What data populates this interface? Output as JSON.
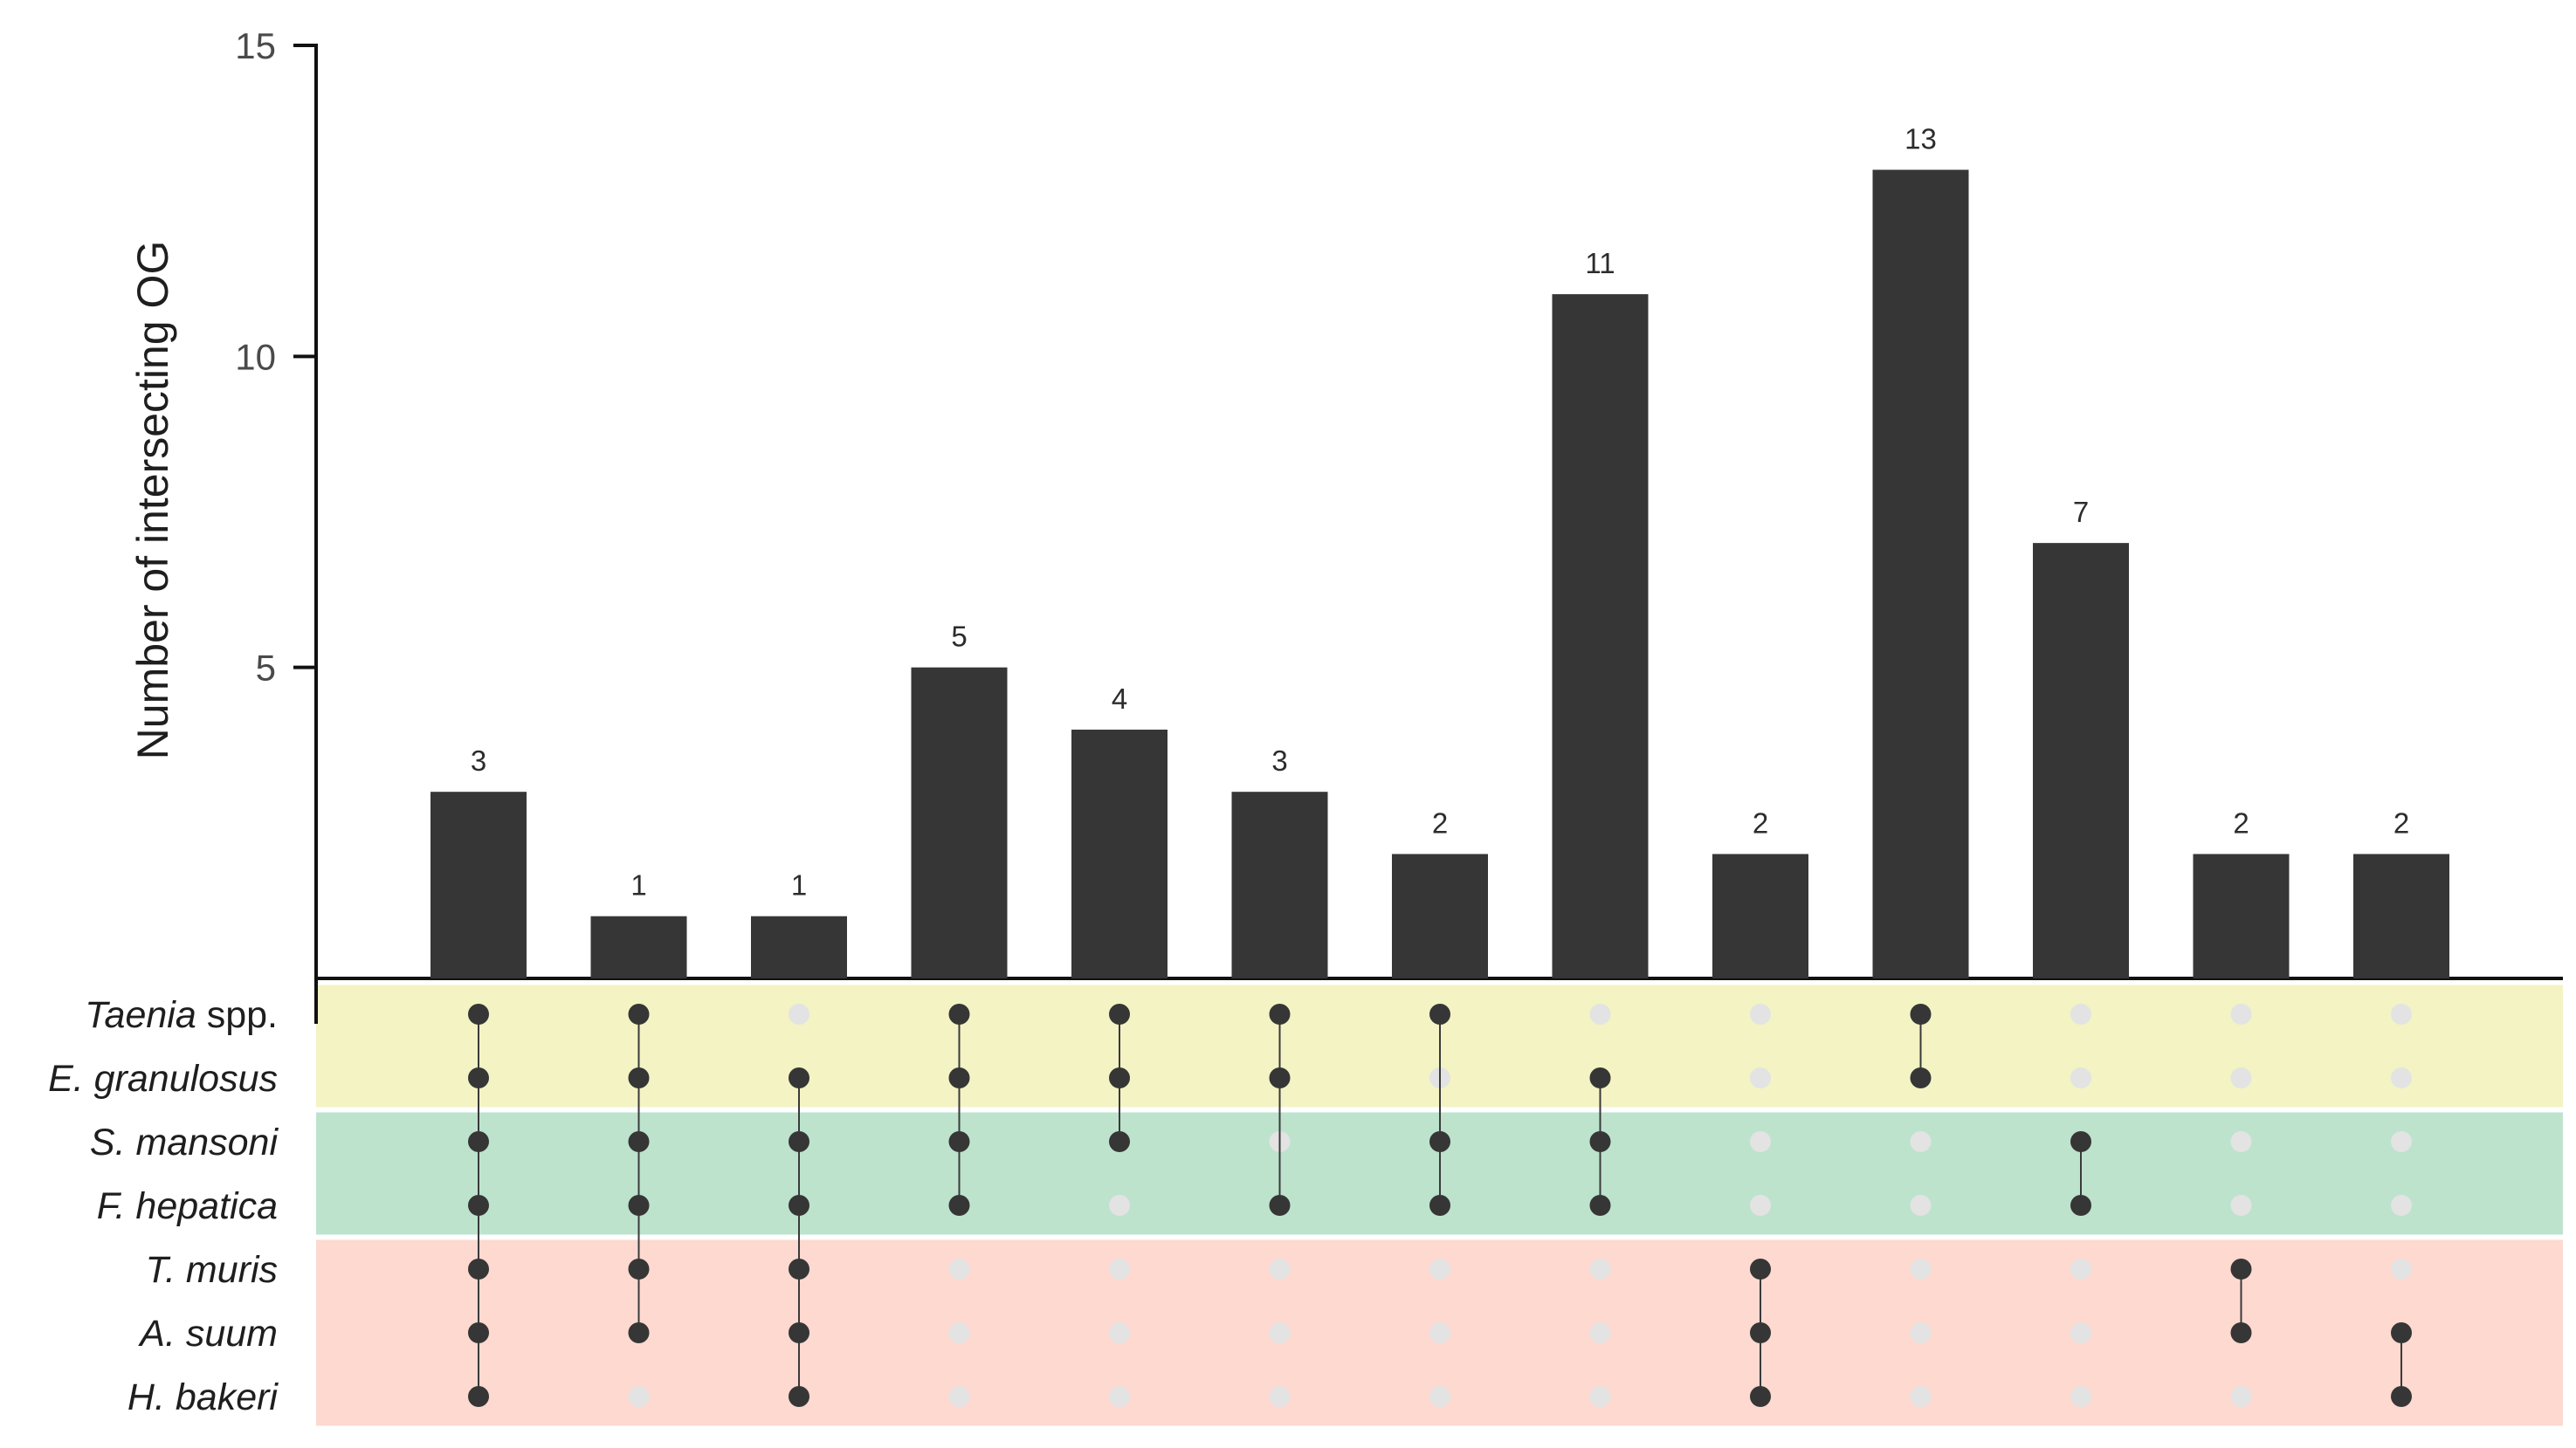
{
  "chart_data": {
    "type": "bar",
    "subtype": "upset",
    "ylabel": "Number of intersecting OG",
    "ylim": [
      0,
      15
    ],
    "yticks": [
      5,
      10,
      15
    ],
    "colors": {
      "bar": "#363636",
      "dot_on": "#363636",
      "dot_off": "#e3e3e3",
      "group_cestodes": "#f3f3c4",
      "group_trematodes": "#bde3cd",
      "group_nematodes": "#fdd9d0"
    },
    "sets": [
      {
        "italic": "Taenia",
        "plain": " spp.",
        "group": "cestodes"
      },
      {
        "italic": "E. granulosus",
        "plain": "",
        "group": "cestodes"
      },
      {
        "italic": "S. mansoni",
        "plain": "",
        "group": "trematodes"
      },
      {
        "italic": "F. hepatica",
        "plain": "",
        "group": "trematodes"
      },
      {
        "italic": "T. muris",
        "plain": "",
        "group": "nematodes"
      },
      {
        "italic": "A. suum",
        "plain": "",
        "group": "nematodes"
      },
      {
        "italic": "H. bakeri",
        "plain": "",
        "group": "nematodes"
      }
    ],
    "values": [
      3,
      1,
      1,
      5,
      4,
      3,
      2,
      11,
      2,
      13,
      7,
      2,
      2
    ],
    "matrix": [
      [
        1,
        1,
        1,
        1,
        1,
        1,
        1
      ],
      [
        1,
        1,
        1,
        1,
        1,
        1,
        0
      ],
      [
        0,
        1,
        1,
        1,
        1,
        1,
        1
      ],
      [
        1,
        1,
        1,
        1,
        0,
        0,
        0
      ],
      [
        1,
        1,
        1,
        0,
        0,
        0,
        0
      ],
      [
        1,
        1,
        0,
        1,
        0,
        0,
        0
      ],
      [
        1,
        0,
        1,
        1,
        0,
        0,
        0
      ],
      [
        0,
        1,
        1,
        1,
        0,
        0,
        0
      ],
      [
        0,
        0,
        0,
        0,
        1,
        1,
        1
      ],
      [
        1,
        1,
        0,
        0,
        0,
        0,
        0
      ],
      [
        0,
        0,
        1,
        1,
        0,
        0,
        0
      ],
      [
        0,
        0,
        0,
        0,
        1,
        1,
        0
      ],
      [
        0,
        0,
        0,
        0,
        0,
        1,
        1
      ]
    ]
  }
}
